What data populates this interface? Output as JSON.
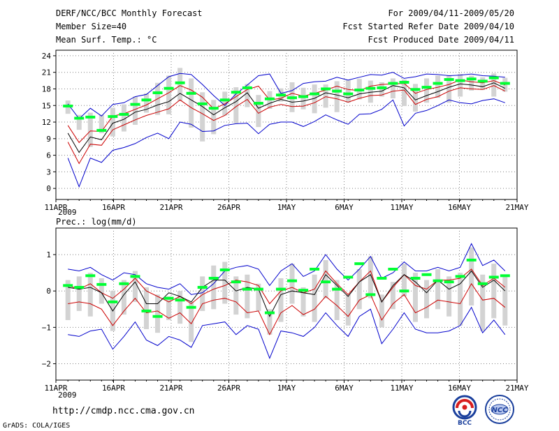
{
  "header": {
    "title": "DERF/NCC/BCC Monthly Forecast",
    "member": "Member Size=40",
    "variable": "Mean Surf. Temp.: °C",
    "period": "For 2009/04/11-2009/05/20",
    "started": "Fcst Started Refer Date 2009/04/10",
    "produced": "Fcst Produced Date 2009/04/11"
  },
  "footer": {
    "url": "http://cmdp.ncc.cma.gov.cn",
    "grads": "GrADS: COLA/IGES",
    "logo_bcc": "BCC",
    "logo_ncc": "NCC"
  },
  "colors": {
    "grid": "#808080",
    "box": "#d3d3d3",
    "observed": "#00ff33",
    "mean": "#000000",
    "spread": "#cc0000",
    "extreme": "#0000cc"
  },
  "chart_data": [
    {
      "type": "line",
      "title": "Mean Surf. Temp.: °C",
      "x_ticks": [
        "11APR",
        "16APR",
        "21APR",
        "26APR",
        "1MAY",
        "6MAY",
        "11MAY",
        "16MAY",
        "21MAY"
      ],
      "x_year": "2009",
      "days": 40,
      "ylim": [
        -2,
        25
      ],
      "y_ticks": [
        0,
        3,
        6,
        9,
        12,
        15,
        18,
        21,
        24
      ],
      "y_tick_labels": [
        "0",
        "3",
        "6",
        "9",
        "12",
        "15",
        "18",
        "21",
        "24"
      ],
      "series": [
        {
          "name": "max",
          "values": [
            15.3,
            12.6,
            14.5,
            13.1,
            15.2,
            15.5,
            16.6,
            17.0,
            18.6,
            20.2,
            20.8,
            20.6,
            18.8,
            16.8,
            15.0,
            17.1,
            18.7,
            20.4,
            20.7,
            17.2,
            17.7,
            19.0,
            19.3,
            19.4,
            20.1,
            19.6,
            20.1,
            20.6,
            20.5,
            21.0,
            19.9,
            20.2,
            20.7,
            20.6,
            20.4,
            20.5,
            20.7,
            20.4,
            20.3,
            20.1
          ]
        },
        {
          "name": "upper",
          "values": [
            11.4,
            8.3,
            10.4,
            10.3,
            13.1,
            13.5,
            14.3,
            15.1,
            16.2,
            17.3,
            18.6,
            17.8,
            16.5,
            14.4,
            15.3,
            16.6,
            17.9,
            18.5,
            16.0,
            16.3,
            17.2,
            16.7,
            17.2,
            17.8,
            18.5,
            17.9,
            17.7,
            18.5,
            18.8,
            18.9,
            19.0,
            17.2,
            17.9,
            18.3,
            18.8,
            19.6,
            19.3,
            19.1,
            19.5,
            18.7
          ]
        },
        {
          "name": "mean",
          "values": [
            10.0,
            6.5,
            9.3,
            8.8,
            11.8,
            12.5,
            13.8,
            14.3,
            15.1,
            15.7,
            17.2,
            16.0,
            14.8,
            13.3,
            14.6,
            15.7,
            17.3,
            14.5,
            15.4,
            16.1,
            15.6,
            15.8,
            16.3,
            17.3,
            16.9,
            16.4,
            17.1,
            17.4,
            17.6,
            18.6,
            18.2,
            16.0,
            16.8,
            17.5,
            18.3,
            18.9,
            18.7,
            18.4,
            19.1,
            18.1
          ]
        },
        {
          "name": "lower",
          "values": [
            8.4,
            4.5,
            8.0,
            7.8,
            10.6,
            11.5,
            12.4,
            13.2,
            13.8,
            14.4,
            16.0,
            14.6,
            13.5,
            12.3,
            13.2,
            14.8,
            16.1,
            13.6,
            14.7,
            15.2,
            14.8,
            14.9,
            15.5,
            16.6,
            16.2,
            15.6,
            16.3,
            16.8,
            16.9,
            17.6,
            17.8,
            15.2,
            16.1,
            16.6,
            17.6,
            18.2,
            18.0,
            17.9,
            18.6,
            17.6
          ]
        },
        {
          "name": "min",
          "values": [
            5.5,
            0.3,
            5.5,
            4.7,
            6.9,
            7.4,
            8.1,
            9.2,
            10.0,
            9.0,
            12.0,
            11.6,
            10.3,
            10.4,
            11.4,
            11.7,
            11.8,
            9.9,
            11.6,
            12.0,
            12.0,
            11.2,
            12.1,
            13.3,
            12.4,
            11.6,
            13.4,
            13.5,
            14.3,
            16.0,
            11.3,
            13.6,
            14.1,
            15.0,
            16.0,
            15.5,
            15.3,
            15.9,
            16.2,
            15.5
          ]
        },
        {
          "name": "box_top",
          "values": [
            15.9,
            13.3,
            13.7,
            13.3,
            14.6,
            15.2,
            16.6,
            17.2,
            19.1,
            20.4,
            21.8,
            19.9,
            17.4,
            16.0,
            17.5,
            18.3,
            18.9,
            16.9,
            17.6,
            18.1,
            19.2,
            18.2,
            18.8,
            18.8,
            19.4,
            19.6,
            19.8,
            19.5,
            19.2,
            19.9,
            19.7,
            18.9,
            19.9,
            20.4,
            20.4,
            20.7,
            20.4,
            20.1,
            20.8,
            20.0
          ]
        },
        {
          "name": "box_bottom",
          "values": [
            13.5,
            10.6,
            7.5,
            10.0,
            9.4,
            10.3,
            11.5,
            13.7,
            13.3,
            13.4,
            15.8,
            11.0,
            8.5,
            9.8,
            13.2,
            11.8,
            14.7,
            11.1,
            14.4,
            15.7,
            13.8,
            14.3,
            13.6,
            14.6,
            13.8,
            15.5,
            16.1,
            15.5,
            16.6,
            16.3,
            14.9,
            13.9,
            15.5,
            16.4,
            15.5,
            16.6,
            17.7,
            17.8,
            16.6,
            17.5
          ]
        },
        {
          "name": "observed",
          "values": [
            14.9,
            12.7,
            12.9,
            10.5,
            13.0,
            13.4,
            15.2,
            16.0,
            17.3,
            18.1,
            19.1,
            17.2,
            15.3,
            14.5,
            16.0,
            17.4,
            18.2,
            15.4,
            16.2,
            16.9,
            16.4,
            16.6,
            17.1,
            18.0,
            17.6,
            17.1,
            17.8,
            18.1,
            18.2,
            19.0,
            19.2,
            17.9,
            18.3,
            19.0,
            19.7,
            19.5,
            19.8,
            19.4,
            20.0,
            19.0
          ]
        }
      ]
    },
    {
      "type": "line",
      "title": "Prec.: log(mm/d)",
      "x_ticks": [
        "11APR",
        "16APR",
        "21APR",
        "26APR",
        "1MAY",
        "6MAY",
        "11MAY",
        "16MAY",
        "21MAY"
      ],
      "x_year": "2009",
      "days": 40,
      "ylim": [
        -2.45,
        1.73
      ],
      "y_ticks": [
        -2,
        -1,
        0,
        1
      ],
      "y_tick_labels": [
        "−2",
        "−1",
        "0",
        "1"
      ],
      "series": [
        {
          "name": "max",
          "values": [
            0.6,
            0.55,
            0.65,
            0.45,
            0.3,
            0.5,
            0.45,
            0.2,
            0.1,
            0.05,
            0.2,
            -0.1,
            -0.05,
            0.2,
            0.55,
            0.65,
            0.7,
            0.6,
            0.15,
            0.55,
            0.75,
            0.4,
            0.55,
            1.0,
            0.6,
            0.3,
            0.6,
            0.95,
            0.35,
            0.5,
            0.8,
            0.55,
            0.55,
            0.65,
            0.55,
            0.65,
            1.3,
            0.7,
            0.85,
            0.55
          ]
        },
        {
          "name": "upper",
          "values": [
            0.15,
            0.05,
            0.2,
            -0.05,
            -0.2,
            0.05,
            0.35,
            0.0,
            -0.15,
            -0.3,
            -0.15,
            -0.35,
            -0.1,
            0.05,
            0.15,
            0.3,
            0.25,
            0.15,
            -0.35,
            0.0,
            0.1,
            -0.05,
            0.05,
            0.55,
            0.2,
            -0.1,
            0.25,
            0.55,
            -0.3,
            0.1,
            0.45,
            0.15,
            0.05,
            0.3,
            0.3,
            0.35,
            0.6,
            0.15,
            0.35,
            0.1
          ]
        },
        {
          "name": "mean",
          "values": [
            0.1,
            0.05,
            0.1,
            -0.05,
            -0.55,
            -0.1,
            0.25,
            -0.35,
            -0.35,
            -0.05,
            -0.15,
            -0.3,
            0.1,
            0.3,
            0.3,
            0.0,
            0.1,
            0.05,
            -0.7,
            -0.1,
            0.0,
            -0.05,
            -0.1,
            0.45,
            0.15,
            -0.15,
            0.25,
            0.45,
            -0.3,
            0.15,
            0.45,
            0.25,
            -0.05,
            0.3,
            0.05,
            0.2,
            0.55,
            0.1,
            0.3,
            0.0
          ]
        },
        {
          "name": "lower",
          "values": [
            -0.35,
            -0.3,
            -0.35,
            -0.5,
            -0.95,
            -0.55,
            -0.2,
            -0.6,
            -0.55,
            -0.75,
            -0.6,
            -0.9,
            -0.35,
            -0.25,
            -0.2,
            -0.3,
            -0.6,
            -0.55,
            -1.2,
            -0.6,
            -0.4,
            -0.65,
            -0.5,
            -0.15,
            -0.4,
            -0.7,
            -0.25,
            -0.1,
            -0.8,
            -0.35,
            -0.1,
            -0.6,
            -0.45,
            -0.25,
            -0.3,
            -0.35,
            0.2,
            -0.25,
            -0.2,
            -0.45
          ]
        },
        {
          "name": "min",
          "values": [
            -1.2,
            -1.25,
            -1.1,
            -1.05,
            -1.6,
            -1.25,
            -0.85,
            -1.35,
            -1.5,
            -1.25,
            -1.35,
            -1.55,
            -0.95,
            -0.9,
            -0.85,
            -1.2,
            -0.95,
            -1.05,
            -1.85,
            -1.1,
            -1.15,
            -1.25,
            -1.0,
            -0.6,
            -0.95,
            -1.25,
            -0.7,
            -0.5,
            -1.45,
            -1.05,
            -0.6,
            -1.05,
            -1.15,
            -1.15,
            -1.1,
            -0.95,
            -0.45,
            -1.15,
            -0.8,
            -1.2
          ]
        },
        {
          "name": "box_top",
          "values": [
            0.3,
            0.4,
            0.5,
            0.35,
            0.0,
            0.3,
            0.55,
            0.1,
            -0.1,
            -0.15,
            0.0,
            -0.3,
            0.4,
            0.7,
            0.8,
            0.4,
            0.45,
            0.2,
            -0.5,
            0.35,
            0.75,
            0.1,
            0.45,
            0.85,
            0.3,
            -0.1,
            0.6,
            0.95,
            -0.1,
            0.25,
            0.75,
            0.5,
            0.3,
            0.6,
            0.4,
            0.5,
            1.2,
            0.45,
            0.75,
            0.4
          ]
        },
        {
          "name": "box_bottom",
          "values": [
            -0.8,
            -0.55,
            -0.7,
            -0.35,
            -1.1,
            -0.65,
            -0.3,
            -1.05,
            -1.15,
            -0.8,
            -0.9,
            -1.4,
            -0.55,
            -0.5,
            -0.35,
            -0.65,
            -0.75,
            -0.55,
            -1.2,
            -0.85,
            -0.35,
            -0.7,
            -0.85,
            -0.2,
            -0.8,
            -0.95,
            -0.5,
            -0.2,
            -1.0,
            -0.5,
            -0.15,
            -0.85,
            -0.75,
            -0.5,
            -0.7,
            -0.95,
            -0.4,
            -1.1,
            -0.75,
            -0.95
          ]
        },
        {
          "name": "observed",
          "values": [
            0.15,
            0.1,
            0.42,
            0.18,
            -0.3,
            0.2,
            0.4,
            -0.55,
            -0.7,
            -0.2,
            -0.25,
            -0.45,
            0.1,
            0.35,
            0.58,
            0.25,
            0.05,
            0.05,
            -0.6,
            0.05,
            0.28,
            0.02,
            0.6,
            0.25,
            0.05,
            0.38,
            0.75,
            -0.1,
            0.35,
            0.6,
            0.0,
            0.35,
            0.45,
            0.28,
            0.25,
            0.4,
            0.85,
            0.2,
            0.38,
            0.42
          ]
        }
      ]
    }
  ]
}
